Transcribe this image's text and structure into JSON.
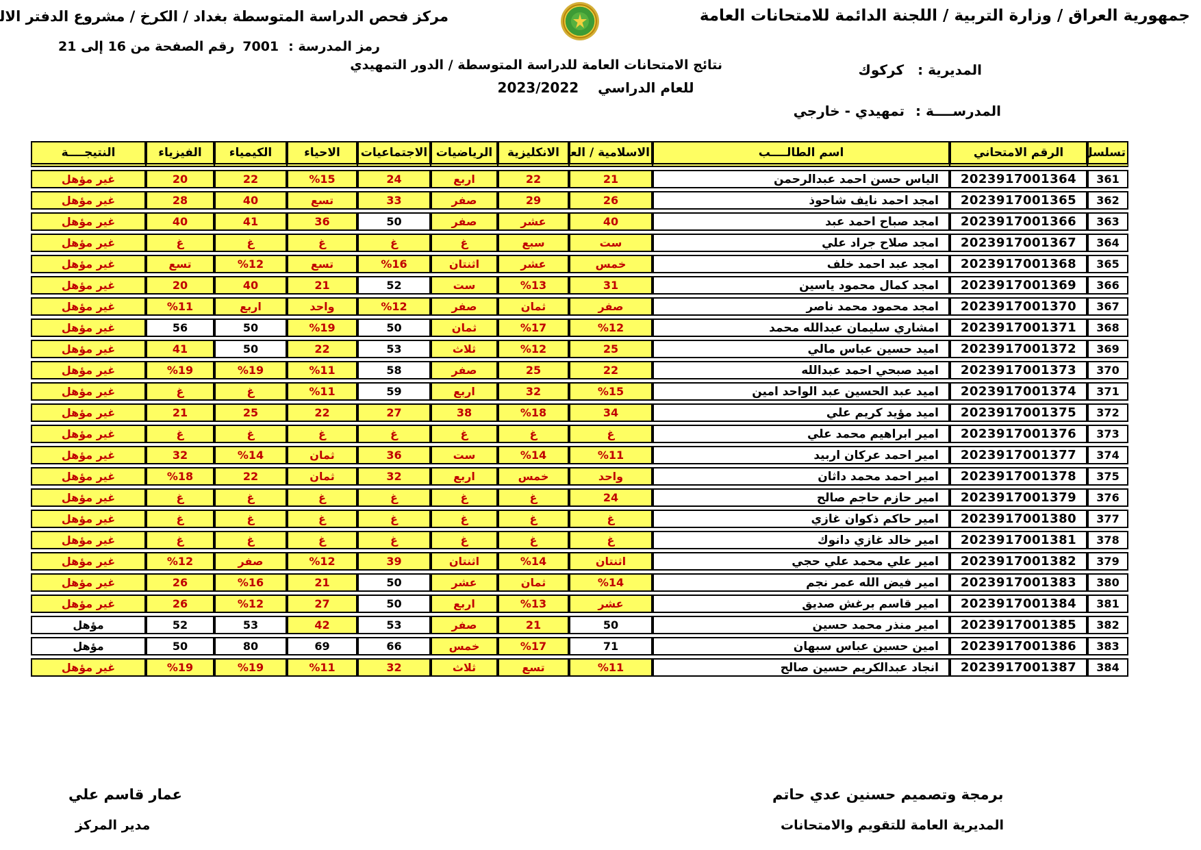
{
  "colors": {
    "fail_bg": "#FEFE62",
    "fail_text": "#C00000",
    "pass_bg": "#FFFFFF",
    "text": "#000000",
    "logo_green": "#3D9B35",
    "logo_gold": "#D4AF37"
  },
  "header": {
    "top_right": "جمهورية العراق / وزارة التربية / اللجنة الدائمة للامتحانات العامة",
    "top_left": "مركز فحص الدراسة المتوسطة بغداد / الكرخ / مشروع الدفتر الالكتروني",
    "school_code_label": "رمز المدرسة :",
    "school_code": "7001",
    "page_range": "رقم الصفحة من  16 إلى 21",
    "results_title": "نتائج الامتحانات العامة للدراسة المتوسطة / الدور التمهيدي",
    "year_label": "للعام الدراسي",
    "year_value": "2023/2022",
    "directorate_label": "المديرية :",
    "directorate_value": "كركوك",
    "school_label": "المدرســــة :",
    "school_value": "تمهيدي - خارجي",
    "logo": "iraq-ministry-of-education-emblem"
  },
  "table": {
    "columns": [
      "تسلسل",
      "الرقم الامتحاني",
      "اسم الطالــــب",
      "الاسلامية / العربية",
      "الانكليزية",
      "الرياضيات",
      "الاجتماعيات",
      "الاحياء",
      "الكيمياء",
      "الفيزياء",
      "النتيجــــة"
    ],
    "rows": [
      {
        "serial": "361",
        "exam": "2023917001364",
        "name": "الياس حسن احمد عبدالرحمن",
        "grades": [
          [
            "21",
            0
          ],
          [
            "22",
            0
          ],
          [
            "اربع",
            0
          ],
          [
            "24",
            0
          ],
          [
            "%15",
            0
          ],
          [
            "22",
            0
          ],
          [
            "20",
            0
          ]
        ],
        "result": [
          "غير مؤهل",
          0
        ]
      },
      {
        "serial": "362",
        "exam": "2023917001365",
        "name": "امجد احمد نايف شاحوذ",
        "grades": [
          [
            "26",
            0
          ],
          [
            "29",
            0
          ],
          [
            "صفر",
            0
          ],
          [
            "33",
            0
          ],
          [
            "تسع",
            0
          ],
          [
            "40",
            0
          ],
          [
            "28",
            0
          ]
        ],
        "result": [
          "غير مؤهل",
          0
        ]
      },
      {
        "serial": "363",
        "exam": "2023917001366",
        "name": "امجد صباح احمد عبد",
        "grades": [
          [
            "40",
            0
          ],
          [
            "عشر",
            0
          ],
          [
            "صفر",
            0
          ],
          [
            "50",
            1
          ],
          [
            "36",
            0
          ],
          [
            "41",
            0
          ],
          [
            "40",
            0
          ]
        ],
        "result": [
          "غير مؤهل",
          0
        ]
      },
      {
        "serial": "364",
        "exam": "2023917001367",
        "name": "امجد صلاح جراد علي",
        "grades": [
          [
            "ست",
            0
          ],
          [
            "سبع",
            0
          ],
          [
            "غ",
            0
          ],
          [
            "غ",
            0
          ],
          [
            "غ",
            0
          ],
          [
            "غ",
            0
          ],
          [
            "غ",
            0
          ]
        ],
        "result": [
          "غير مؤهل",
          0
        ]
      },
      {
        "serial": "365",
        "exam": "2023917001368",
        "name": "امجد عبد احمد خلف",
        "grades": [
          [
            "خمس",
            0
          ],
          [
            "عشر",
            0
          ],
          [
            "اثنتان",
            0
          ],
          [
            "%16",
            0
          ],
          [
            "تسع",
            0
          ],
          [
            "%12",
            0
          ],
          [
            "تسع",
            0
          ]
        ],
        "result": [
          "غير مؤهل",
          0
        ]
      },
      {
        "serial": "366",
        "exam": "2023917001369",
        "name": "امجد كمال محمود ياسين",
        "grades": [
          [
            "31",
            0
          ],
          [
            "%13",
            0
          ],
          [
            "ست",
            0
          ],
          [
            "52",
            1
          ],
          [
            "21",
            0
          ],
          [
            "40",
            0
          ],
          [
            "20",
            0
          ]
        ],
        "result": [
          "غير مؤهل",
          0
        ]
      },
      {
        "serial": "367",
        "exam": "2023917001370",
        "name": "امجد محمود محمد ناصر",
        "grades": [
          [
            "صفر",
            0
          ],
          [
            "ثمان",
            0
          ],
          [
            "صفر",
            0
          ],
          [
            "%12",
            0
          ],
          [
            "واحد",
            0
          ],
          [
            "اربع",
            0
          ],
          [
            "%11",
            0
          ]
        ],
        "result": [
          "غير مؤهل",
          0
        ]
      },
      {
        "serial": "368",
        "exam": "2023917001371",
        "name": "امشاري سليمان عبدالله محمد",
        "grades": [
          [
            "%12",
            0
          ],
          [
            "%17",
            0
          ],
          [
            "ثمان",
            0
          ],
          [
            "50",
            1
          ],
          [
            "%19",
            0
          ],
          [
            "50",
            1
          ],
          [
            "56",
            1
          ]
        ],
        "result": [
          "غير مؤهل",
          0
        ]
      },
      {
        "serial": "369",
        "exam": "2023917001372",
        "name": "اميد حسين عباس مالي",
        "grades": [
          [
            "25",
            0
          ],
          [
            "%12",
            0
          ],
          [
            "ثلاث",
            0
          ],
          [
            "53",
            1
          ],
          [
            "22",
            0
          ],
          [
            "50",
            1
          ],
          [
            "41",
            0
          ]
        ],
        "result": [
          "غير مؤهل",
          0
        ]
      },
      {
        "serial": "370",
        "exam": "2023917001373",
        "name": "اميد صبحي احمد عبدالله",
        "grades": [
          [
            "22",
            0
          ],
          [
            "25",
            0
          ],
          [
            "صفر",
            0
          ],
          [
            "58",
            1
          ],
          [
            "%11",
            0
          ],
          [
            "%19",
            0
          ],
          [
            "%19",
            0
          ]
        ],
        "result": [
          "غير مؤهل",
          0
        ]
      },
      {
        "serial": "371",
        "exam": "2023917001374",
        "name": "اميد عبد الحسين عبد الواحد امين",
        "grades": [
          [
            "%15",
            0
          ],
          [
            "32",
            0
          ],
          [
            "اربع",
            0
          ],
          [
            "59",
            1
          ],
          [
            "%11",
            0
          ],
          [
            "غ",
            0
          ],
          [
            "غ",
            0
          ]
        ],
        "result": [
          "غير مؤهل",
          0
        ]
      },
      {
        "serial": "372",
        "exam": "2023917001375",
        "name": "اميد مؤيد كريم علي",
        "grades": [
          [
            "34",
            0
          ],
          [
            "%18",
            0
          ],
          [
            "38",
            0
          ],
          [
            "27",
            0
          ],
          [
            "22",
            0
          ],
          [
            "25",
            0
          ],
          [
            "21",
            0
          ]
        ],
        "result": [
          "غير مؤهل",
          0
        ]
      },
      {
        "serial": "373",
        "exam": "2023917001376",
        "name": "امير ابراهيم محمد علي",
        "grades": [
          [
            "غ",
            0
          ],
          [
            "غ",
            0
          ],
          [
            "غ",
            0
          ],
          [
            "غ",
            0
          ],
          [
            "غ",
            0
          ],
          [
            "غ",
            0
          ],
          [
            "غ",
            0
          ]
        ],
        "result": [
          "غير مؤهل",
          0
        ]
      },
      {
        "serial": "374",
        "exam": "2023917001377",
        "name": "امير احمد عركان اربيد",
        "grades": [
          [
            "%11",
            0
          ],
          [
            "%14",
            0
          ],
          [
            "ست",
            0
          ],
          [
            "36",
            0
          ],
          [
            "ثمان",
            0
          ],
          [
            "%14",
            0
          ],
          [
            "32",
            0
          ]
        ],
        "result": [
          "غير مؤهل",
          0
        ]
      },
      {
        "serial": "375",
        "exam": "2023917001378",
        "name": "امير احمد محمد داثان",
        "grades": [
          [
            "واحد",
            0
          ],
          [
            "خمس",
            0
          ],
          [
            "اربع",
            0
          ],
          [
            "32",
            0
          ],
          [
            "ثمان",
            0
          ],
          [
            "22",
            0
          ],
          [
            "%18",
            0
          ]
        ],
        "result": [
          "غير مؤهل",
          0
        ]
      },
      {
        "serial": "376",
        "exam": "2023917001379",
        "name": "امير حازم حاجم صالح",
        "grades": [
          [
            "24",
            0
          ],
          [
            "غ",
            0
          ],
          [
            "غ",
            0
          ],
          [
            "غ",
            0
          ],
          [
            "غ",
            0
          ],
          [
            "غ",
            0
          ],
          [
            "غ",
            0
          ]
        ],
        "result": [
          "غير مؤهل",
          0
        ]
      },
      {
        "serial": "377",
        "exam": "2023917001380",
        "name": "امير حاكم ذكوان غازي",
        "grades": [
          [
            "غ",
            0
          ],
          [
            "غ",
            0
          ],
          [
            "غ",
            0
          ],
          [
            "غ",
            0
          ],
          [
            "غ",
            0
          ],
          [
            "غ",
            0
          ],
          [
            "غ",
            0
          ]
        ],
        "result": [
          "غير مؤهل",
          0
        ]
      },
      {
        "serial": "378",
        "exam": "2023917001381",
        "name": "امير خالد غازي دانوك",
        "grades": [
          [
            "غ",
            0
          ],
          [
            "غ",
            0
          ],
          [
            "غ",
            0
          ],
          [
            "غ",
            0
          ],
          [
            "غ",
            0
          ],
          [
            "غ",
            0
          ],
          [
            "غ",
            0
          ]
        ],
        "result": [
          "غير مؤهل",
          0
        ]
      },
      {
        "serial": "379",
        "exam": "2023917001382",
        "name": "امير علي محمد علي حجي",
        "grades": [
          [
            "اثنتان",
            0
          ],
          [
            "%14",
            0
          ],
          [
            "اثنتان",
            0
          ],
          [
            "39",
            0
          ],
          [
            "%12",
            0
          ],
          [
            "صفر",
            0
          ],
          [
            "%12",
            0
          ]
        ],
        "result": [
          "غير مؤهل",
          0
        ]
      },
      {
        "serial": "380",
        "exam": "2023917001383",
        "name": "امير فيض الله عمر نجم",
        "grades": [
          [
            "%14",
            0
          ],
          [
            "ثمان",
            0
          ],
          [
            "عشر",
            0
          ],
          [
            "50",
            1
          ],
          [
            "21",
            0
          ],
          [
            "%16",
            0
          ],
          [
            "26",
            0
          ]
        ],
        "result": [
          "غير مؤهل",
          0
        ]
      },
      {
        "serial": "381",
        "exam": "2023917001384",
        "name": "امير قاسم برغش صديق",
        "grades": [
          [
            "عشر",
            0
          ],
          [
            "%13",
            0
          ],
          [
            "اربع",
            0
          ],
          [
            "50",
            1
          ],
          [
            "27",
            0
          ],
          [
            "%12",
            0
          ],
          [
            "26",
            0
          ]
        ],
        "result": [
          "غير مؤهل",
          0
        ]
      },
      {
        "serial": "382",
        "exam": "2023917001385",
        "name": "امير منذر محمد حسين",
        "grades": [
          [
            "50",
            1
          ],
          [
            "21",
            0
          ],
          [
            "صفر",
            0
          ],
          [
            "53",
            1
          ],
          [
            "42",
            0
          ],
          [
            "53",
            1
          ],
          [
            "52",
            1
          ]
        ],
        "result": [
          "مؤهل",
          1
        ]
      },
      {
        "serial": "383",
        "exam": "2023917001386",
        "name": "امين حسين عباس سبهان",
        "grades": [
          [
            "71",
            1
          ],
          [
            "%17",
            0
          ],
          [
            "خمس",
            0
          ],
          [
            "66",
            1
          ],
          [
            "69",
            1
          ],
          [
            "80",
            1
          ],
          [
            "50",
            1
          ]
        ],
        "result": [
          "مؤهل",
          1
        ]
      },
      {
        "serial": "384",
        "exam": "2023917001387",
        "name": "انجاد عبدالكريم حسين صالح",
        "grades": [
          [
            "%11",
            0
          ],
          [
            "تسع",
            0
          ],
          [
            "ثلاث",
            0
          ],
          [
            "32",
            0
          ],
          [
            "%11",
            0
          ],
          [
            "%19",
            0
          ],
          [
            "%19",
            0
          ]
        ],
        "result": [
          "غير مؤهل",
          0
        ]
      }
    ]
  },
  "footer": {
    "left_name": "عمار قاسم علي",
    "left_title": "مدير المركز",
    "right_line1": "برمجة وتصميم حسنين عدي حاتم",
    "right_line2": "المديرية العامة للتقويم والامتحانات"
  }
}
